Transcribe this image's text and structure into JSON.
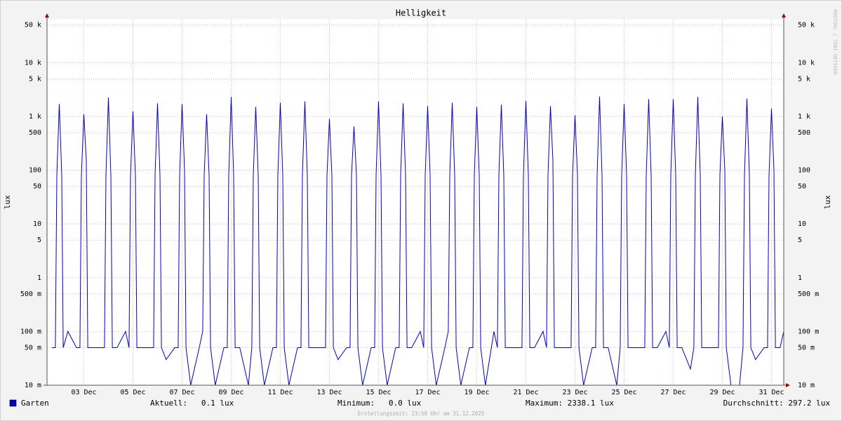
{
  "chart_data": {
    "type": "line",
    "title": "Helligkeit",
    "y_label": "lux",
    "watermark": "RRDTOOL / TOBI OETIKER",
    "footer": "Erstellungszeit: 23:58 Uhr am 31.12.2025",
    "log_scale": true,
    "grid": true,
    "legend_position": "bottom",
    "stats": [
      "Aktuell:   0.1 lux",
      "Minimum:   0.0 lux",
      "Maximum: 2338.1 lux",
      "Durchschnitt: 297.2 lux"
    ],
    "xlim": [
      2,
      32
    ],
    "xticks": [
      {
        "value": 3.5,
        "label": "03 Dec"
      },
      {
        "value": 5.5,
        "label": "05 Dec"
      },
      {
        "value": 7.5,
        "label": "07 Dec"
      },
      {
        "value": 9.5,
        "label": "09 Dec"
      },
      {
        "value": 11.5,
        "label": "11 Dec"
      },
      {
        "value": 13.5,
        "label": "13 Dec"
      },
      {
        "value": 15.5,
        "label": "15 Dec"
      },
      {
        "value": 17.5,
        "label": "17 Dec"
      },
      {
        "value": 19.5,
        "label": "19 Dec"
      },
      {
        "value": 21.5,
        "label": "21 Dec"
      },
      {
        "value": 23.5,
        "label": "23 Dec"
      },
      {
        "value": 25.5,
        "label": "25 Dec"
      },
      {
        "value": 27.5,
        "label": "27 Dec"
      },
      {
        "value": 29.5,
        "label": "29 Dec"
      },
      {
        "value": 31.5,
        "label": "31 Dec"
      }
    ],
    "ylim": [
      0.01,
      65000
    ],
    "yticks": [
      {
        "value": 50000,
        "label": "50 k"
      },
      {
        "value": 10000,
        "label": "10 k"
      },
      {
        "value": 5000,
        "label": "5 k"
      },
      {
        "value": 1000,
        "label": "1 k"
      },
      500,
      100,
      50,
      10,
      5,
      1,
      {
        "value": 0.5,
        "label": "500 m"
      },
      {
        "value": 0.1,
        "label": "100 m"
      },
      {
        "value": 0.05,
        "label": "50 m"
      },
      {
        "value": 0.01,
        "label": "10 m"
      }
    ],
    "x": [
      2.2,
      2.34,
      2.4,
      2.5,
      2.6,
      2.66,
      2.85,
      3.2,
      3.34,
      3.4,
      3.5,
      3.6,
      3.66,
      3.85,
      4.2,
      4.34,
      4.4,
      4.5,
      4.6,
      4.66,
      4.85,
      5.2,
      5.34,
      5.4,
      5.5,
      5.6,
      5.66,
      5.85,
      6.2,
      6.34,
      6.4,
      6.5,
      6.6,
      6.66,
      6.85,
      7.2,
      7.34,
      7.4,
      7.5,
      7.6,
      7.66,
      7.85,
      8.2,
      8.34,
      8.4,
      8.5,
      8.6,
      8.66,
      8.85,
      9.2,
      9.34,
      9.4,
      9.5,
      9.6,
      9.66,
      9.85,
      10.2,
      10.34,
      10.4,
      10.5,
      10.6,
      10.66,
      10.85,
      11.2,
      11.34,
      11.4,
      11.5,
      11.6,
      11.66,
      11.85,
      12.2,
      12.34,
      12.4,
      12.5,
      12.6,
      12.66,
      12.85,
      13.2,
      13.34,
      13.4,
      13.5,
      13.6,
      13.66,
      13.85,
      14.2,
      14.34,
      14.4,
      14.5,
      14.6,
      14.66,
      14.85,
      15.2,
      15.34,
      15.4,
      15.5,
      15.6,
      15.66,
      15.85,
      16.2,
      16.34,
      16.4,
      16.5,
      16.6,
      16.66,
      16.85,
      17.2,
      17.34,
      17.4,
      17.5,
      17.6,
      17.66,
      17.85,
      18.2,
      18.34,
      18.4,
      18.5,
      18.6,
      18.66,
      18.85,
      19.2,
      19.34,
      19.4,
      19.5,
      19.6,
      19.66,
      19.85,
      20.2,
      20.34,
      20.4,
      20.5,
      20.6,
      20.66,
      20.85,
      21.2,
      21.34,
      21.4,
      21.5,
      21.6,
      21.66,
      21.85,
      22.2,
      22.34,
      22.4,
      22.5,
      22.6,
      22.66,
      22.85,
      23.2,
      23.34,
      23.4,
      23.5,
      23.6,
      23.66,
      23.85,
      24.2,
      24.34,
      24.4,
      24.5,
      24.6,
      24.66,
      24.85,
      25.2,
      25.34,
      25.4,
      25.5,
      25.6,
      25.66,
      25.85,
      26.2,
      26.34,
      26.4,
      26.5,
      26.6,
      26.66,
      26.85,
      27.2,
      27.34,
      27.4,
      27.5,
      27.6,
      27.66,
      27.85,
      28.2,
      28.34,
      28.4,
      28.5,
      28.6,
      28.66,
      28.85,
      29.2,
      29.34,
      29.4,
      29.5,
      29.6,
      29.66,
      29.85,
      30.2,
      30.34,
      30.4,
      30.5,
      30.6,
      30.66,
      30.85,
      31.2,
      31.34,
      31.4,
      31.5,
      31.6,
      31.66,
      31.85,
      32
    ],
    "series": [
      {
        "name": "Garten",
        "color": "#0000c0",
        "values": [
          0.05,
          0.05,
          80,
          1700,
          80,
          0.05,
          0.1,
          0.05,
          0.05,
          80,
          1100,
          150,
          0.05,
          0.05,
          0.05,
          0.05,
          80,
          2250,
          80,
          0.05,
          0.05,
          0.1,
          0.05,
          80,
          1250,
          80,
          0.05,
          0.05,
          0.05,
          0.05,
          80,
          1750,
          80,
          0.05,
          0.03,
          0.05,
          0.05,
          80,
          1700,
          100,
          0.05,
          0.01,
          0.05,
          0.1,
          80,
          1100,
          80,
          0.05,
          0.01,
          0.05,
          0.05,
          80,
          2300,
          80,
          0.05,
          0.05,
          0.01,
          0.05,
          80,
          1500,
          80,
          0.05,
          0.01,
          0.05,
          0.05,
          80,
          1800,
          80,
          0.05,
          0.01,
          0.05,
          0.05,
          80,
          1900,
          80,
          0.05,
          0.05,
          0.05,
          0.05,
          80,
          900,
          80,
          0.05,
          0.03,
          0.05,
          0.05,
          80,
          650,
          80,
          0.05,
          0.01,
          0.05,
          0.05,
          80,
          1900,
          80,
          0.05,
          0.01,
          0.05,
          0.05,
          80,
          1750,
          80,
          0.05,
          0.05,
          0.1,
          0.05,
          80,
          1550,
          80,
          0.05,
          0.01,
          0.05,
          0.1,
          80,
          1800,
          80,
          0.05,
          0.01,
          0.05,
          0.05,
          80,
          1500,
          80,
          0.05,
          0.01,
          0.1,
          0.05,
          80,
          1650,
          80,
          0.05,
          0.05,
          0.05,
          0.05,
          80,
          1950,
          80,
          0.05,
          0.05,
          0.1,
          0.05,
          80,
          1550,
          150,
          0.05,
          0.05,
          0.05,
          0.05,
          80,
          1050,
          80,
          0.05,
          0.01,
          0.05,
          0.05,
          80,
          2338.1,
          80,
          0.05,
          0.05,
          0.01,
          0.05,
          80,
          1700,
          80,
          0.05,
          0.05,
          0.05,
          0.05,
          80,
          2100,
          80,
          0.05,
          0.05,
          0.1,
          0.05,
          80,
          2100,
          80,
          0.05,
          0.05,
          0.02,
          0.05,
          80,
          2300,
          80,
          0.05,
          0.05,
          0.05,
          0.05,
          80,
          1000,
          100,
          0.05,
          0.01,
          0.01,
          0.05,
          80,
          2150,
          80,
          0.05,
          0.03,
          0.05,
          0.05,
          80,
          1400,
          100,
          0.05,
          0.05,
          0.1
        ]
      }
    ]
  }
}
